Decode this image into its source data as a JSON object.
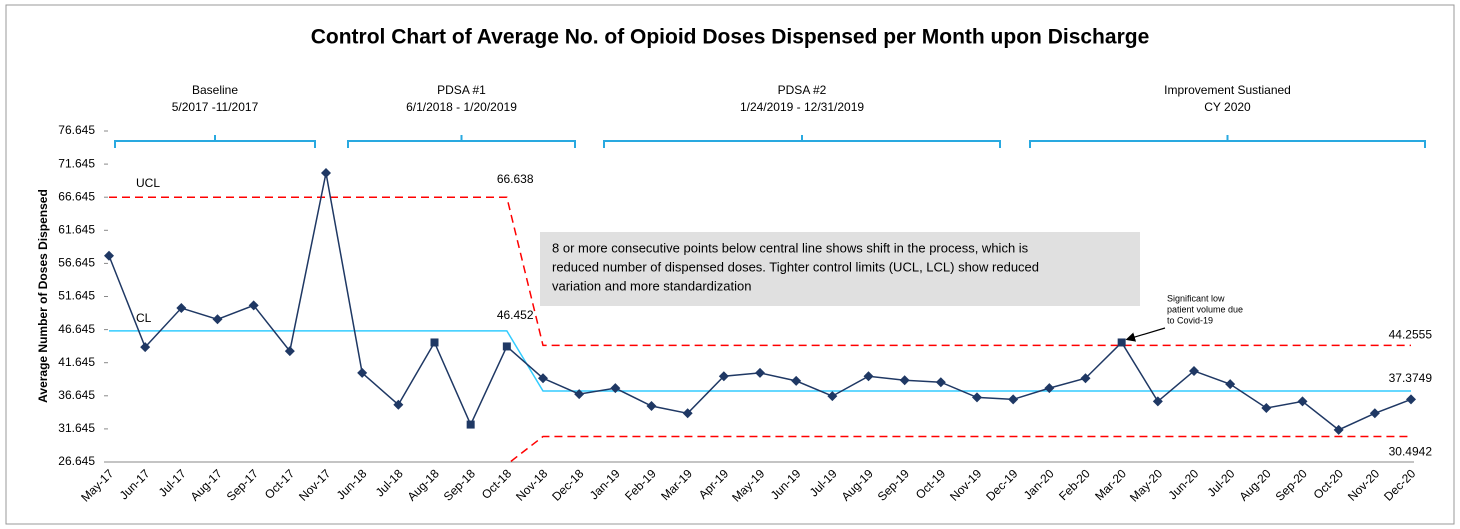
{
  "chart_data": {
    "type": "line",
    "title": "Control Chart of Average No. of Opioid Doses Dispensed per Month upon Discharge",
    "y_label": "Average Number of Doses Dispensed",
    "categories": [
      "May-17",
      "Jun-17",
      "Jul-17",
      "Aug-17",
      "Sep-17",
      "Oct-17",
      "Nov-17",
      "Jun-18",
      "Jul-18",
      "Aug-18",
      "Sep-18",
      "Oct-18",
      "Nov-18",
      "Dec-18",
      "Jan-19",
      "Feb-19",
      "Mar-19",
      "Apr-19",
      "May-19",
      "Jun-19",
      "Jul-19",
      "Aug-19",
      "Sep-19",
      "Oct-19",
      "Nov-19",
      "Dec-19",
      "Jan-20",
      "Feb-20",
      "Mar-20",
      "May-20",
      "Jun-20",
      "Jul-20",
      "Aug-20",
      "Sep-20",
      "Oct-20",
      "Nov-20",
      "Dec-20"
    ],
    "series": [
      {
        "color": "#1f3864",
        "values": [
          57.8,
          44.0,
          49.9,
          48.2,
          50.3,
          43.4,
          70.3,
          40.1,
          35.3,
          44.7,
          32.3,
          44.1,
          39.3,
          36.9,
          37.8,
          35.1,
          34.0,
          39.6,
          40.1,
          38.9,
          36.6,
          39.6,
          39.0,
          38.7,
          36.4,
          36.1,
          37.8,
          39.3,
          44.7,
          35.8,
          40.4,
          38.4,
          34.8,
          35.8,
          31.5,
          34.0,
          36.1
        ]
      },
      {
        "name": "UCL",
        "color": "#ff0000",
        "values": [
          66.638,
          66.638,
          66.638,
          66.638,
          66.638,
          66.638,
          66.638,
          66.638,
          66.638,
          66.638,
          66.638,
          66.638,
          44.2555,
          44.2555,
          44.2555,
          44.2555,
          44.2555,
          44.2555,
          44.2555,
          44.2555,
          44.2555,
          44.2555,
          44.2555,
          44.2555,
          44.2555,
          44.2555,
          44.2555,
          44.2555,
          44.2555,
          44.2555,
          44.2555,
          44.2555,
          44.2555,
          44.2555,
          44.2555,
          44.2555,
          44.2555
        ]
      },
      {
        "name": "CL",
        "color": "#33ccff",
        "values": [
          46.452,
          46.452,
          46.452,
          46.452,
          46.452,
          46.452,
          46.452,
          46.452,
          46.452,
          46.452,
          46.452,
          46.452,
          37.3749,
          37.3749,
          37.3749,
          37.3749,
          37.3749,
          37.3749,
          37.3749,
          37.3749,
          37.3749,
          37.3749,
          37.3749,
          37.3749,
          37.3749,
          37.3749,
          37.3749,
          37.3749,
          37.3749,
          37.3749,
          37.3749,
          37.3749,
          37.3749,
          37.3749,
          37.3749,
          37.3749,
          37.3749
        ]
      },
      {
        "color": "#ff0000",
        "values": [
          26.266,
          26.266,
          26.266,
          26.266,
          26.266,
          26.266,
          26.266,
          26.266,
          26.266,
          26.266,
          26.266,
          26.266,
          30.4942,
          30.4942,
          30.4942,
          30.4942,
          30.4942,
          30.4942,
          30.4942,
          30.4942,
          30.4942,
          30.4942,
          30.4942,
          30.4942,
          30.4942,
          30.4942,
          30.4942,
          30.4942,
          30.4942,
          30.4942,
          30.4942,
          30.4942,
          30.4942,
          30.4942,
          30.4942,
          30.4942,
          30.4942
        ]
      }
    ],
    "ylim": [
      26.645,
      76.645
    ],
    "yticks": [
      26.645,
      31.645,
      36.645,
      41.645,
      46.645,
      51.645,
      56.645,
      61.645,
      66.645,
      71.645,
      76.645
    ],
    "phases": [
      {
        "title": "Baseline",
        "dates": "5/2017 -11/2017"
      },
      {
        "title": "PDSA #1",
        "dates": "6/1/2018 - 1/20/2019"
      },
      {
        "title": "PDSA #2",
        "dates": "1/24/2019 - 12/31/2019"
      },
      {
        "title": "Improvement Sustianed",
        "dates": "CY 2020"
      }
    ],
    "annotation_lines": [
      "8 or more consecutive points below central line shows shift in the process, which is",
      "reduced number of dispensed doses. Tighter control limits (UCL, LCL) show reduced",
      "variation and more standardization"
    ],
    "covid_note_lines": [
      "Significant low",
      "patient volume due",
      "to Covid-19"
    ]
  }
}
